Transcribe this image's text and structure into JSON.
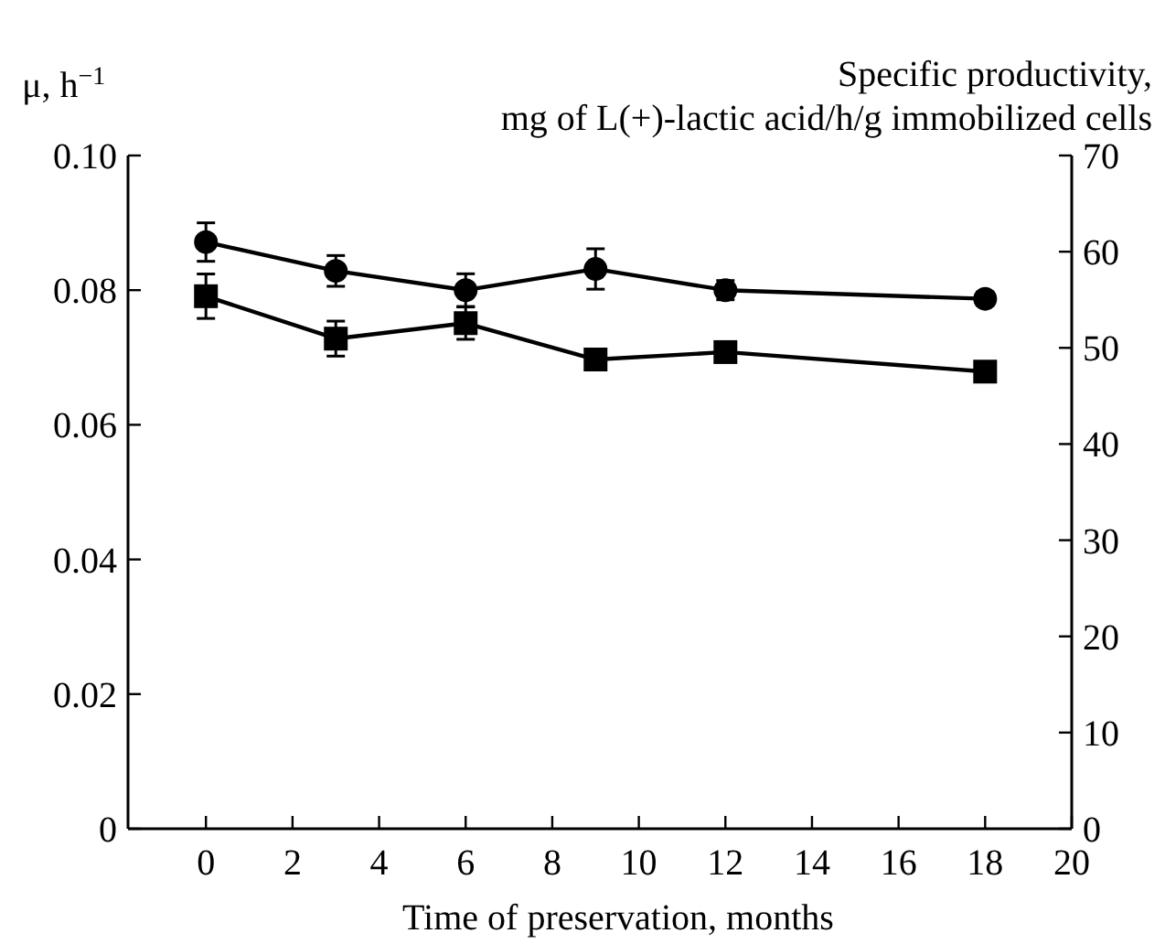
{
  "chart_data": {
    "type": "line",
    "xlabel": "Time of preservation, months",
    "ylabel": "μ, h$^{−1}$",
    "y2label": "Specific productivity,\nmg of L(+)-lactic acid/h/g immobilized cells",
    "x": [
      0,
      3,
      6,
      9,
      12,
      18
    ],
    "xlim": [
      -1.8,
      20
    ],
    "xticks": [
      0,
      2,
      4,
      6,
      8,
      10,
      12,
      14,
      16,
      18,
      20
    ],
    "ylim": [
      0,
      0.1
    ],
    "yticks": [
      0,
      0.02,
      0.04,
      0.06,
      0.08,
      {
        "value": 0.1,
        "label": "0.10"
      }
    ],
    "y2lim": [
      0,
      70
    ],
    "y2ticks": [
      0,
      10,
      20,
      30,
      40,
      50,
      60,
      70
    ],
    "series": [
      {
        "color": "#000000",
        "marker": "square",
        "values": [
          0.0791,
          0.0728,
          0.0751,
          0.0697,
          0.0708,
          0.0679
        ],
        "errors": [
          0.0033,
          0.0026,
          0.0024,
          null,
          null,
          null
        ]
      },
      {
        "color": "#000000",
        "marker": "circle",
        "axis": "y2",
        "values": [
          61.0,
          58.0,
          56.0,
          58.2,
          56.0,
          55.1
        ],
        "errors": [
          2.0,
          1.6,
          1.7,
          2.1,
          1.0,
          0.7
        ]
      }
    ],
    "grid": false,
    "line_style": "solid"
  }
}
